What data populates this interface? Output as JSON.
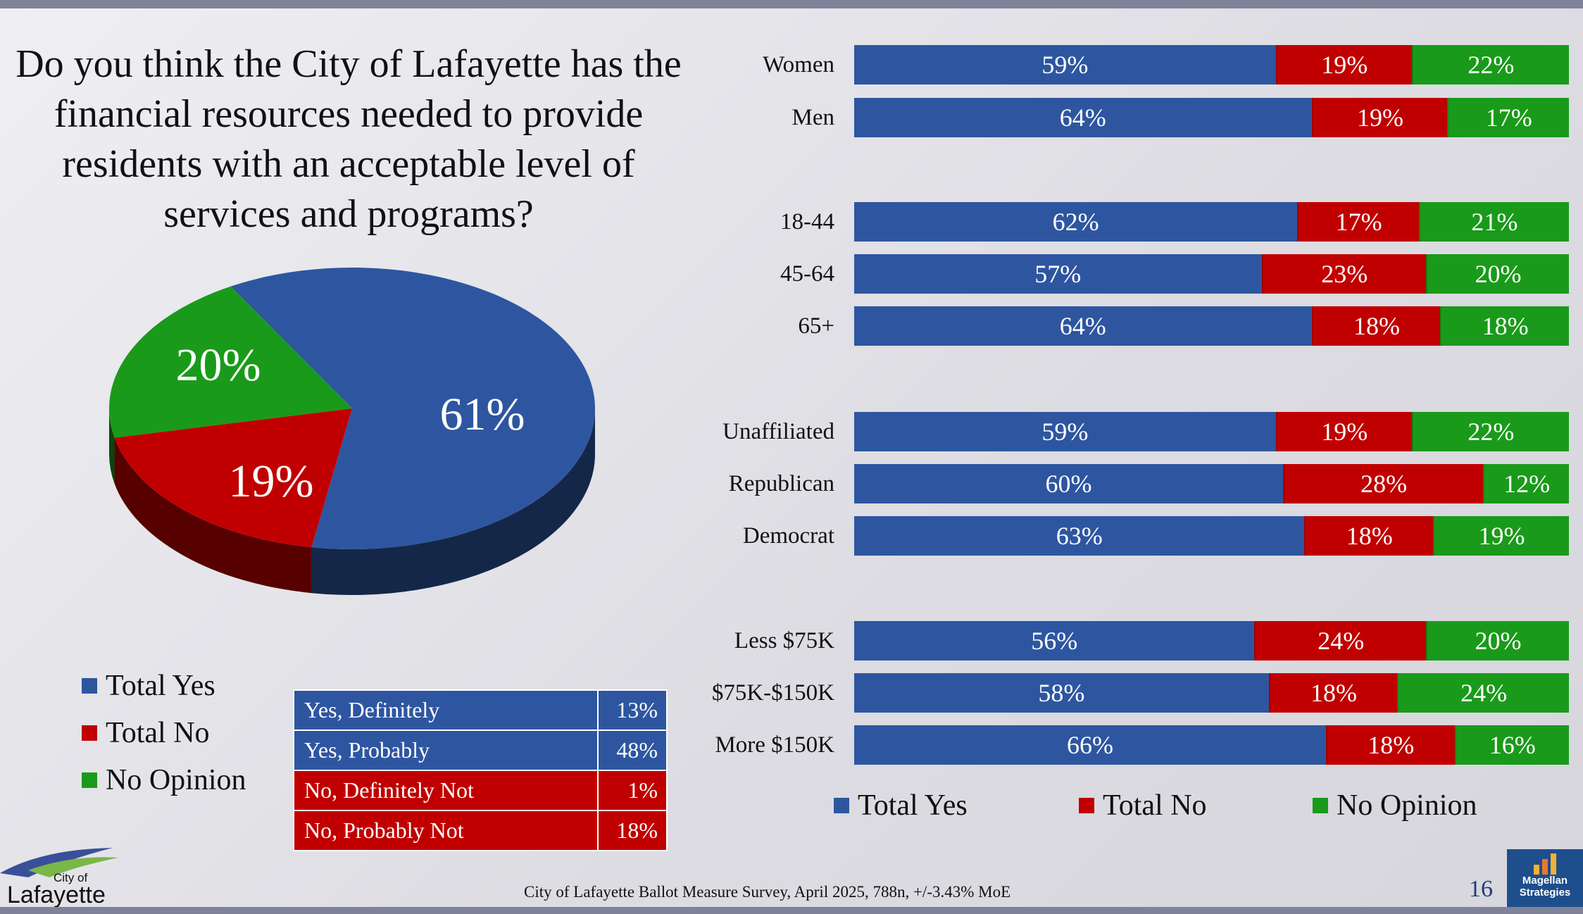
{
  "title": "Do you think the City of Lafayette has the financial resources needed to provide residents with an acceptable level of services and programs?",
  "colors": {
    "yes": "#2e56a0",
    "no": "#c00000",
    "none": "#1a9a1a"
  },
  "chart_data": [
    {
      "type": "pie",
      "title": "",
      "slices": [
        {
          "name": "Total Yes",
          "value": 61,
          "label": "61%"
        },
        {
          "name": "Total No",
          "value": 19,
          "label": "19%"
        },
        {
          "name": "No Opinion",
          "value": 20,
          "label": "20%"
        }
      ],
      "legend": [
        "Total Yes",
        "Total No",
        "No Opinion"
      ],
      "legend_placement": "bottom-left"
    },
    {
      "type": "table",
      "rows": [
        {
          "label": "Yes, Definitely",
          "value": "13%",
          "group": "yes"
        },
        {
          "label": "Yes, Probably",
          "value": "48%",
          "group": "yes"
        },
        {
          "label": "No, Definitely Not",
          "value": "1%",
          "group": "no"
        },
        {
          "label": "No, Probably Not",
          "value": "18%",
          "group": "no"
        }
      ]
    },
    {
      "type": "bar",
      "orientation": "horizontal",
      "stacked": true,
      "categories": [
        "Women",
        "Men",
        "18-44",
        "45-64",
        "65+",
        "Unaffiliated",
        "Republican",
        "Democrat",
        "Less $75K",
        "$75K-$150K",
        "More $150K"
      ],
      "groups": [
        [
          0,
          1
        ],
        [
          2,
          3,
          4
        ],
        [
          5,
          6,
          7
        ],
        [
          8,
          9,
          10
        ]
      ],
      "series": [
        {
          "name": "Total Yes",
          "values": [
            59,
            64,
            62,
            57,
            64,
            59,
            60,
            63,
            56,
            58,
            66
          ]
        },
        {
          "name": "Total No",
          "values": [
            19,
            19,
            17,
            23,
            18,
            19,
            28,
            18,
            24,
            18,
            18
          ]
        },
        {
          "name": "No Opinion",
          "values": [
            22,
            17,
            21,
            20,
            18,
            22,
            12,
            19,
            20,
            24,
            16
          ]
        }
      ],
      "value_suffix": "%",
      "legend": [
        "Total Yes",
        "Total No",
        "No Opinion"
      ],
      "legend_placement": "bottom"
    }
  ],
  "footer": "City of Lafayette Ballot Measure Survey, April 2025, 788n, +/-3.43% MoE",
  "page_number": "16",
  "logo_left": {
    "line1": "City of",
    "line2": "Lafayette"
  },
  "logo_right": {
    "line1": "Magellan",
    "line2": "Strategies"
  }
}
